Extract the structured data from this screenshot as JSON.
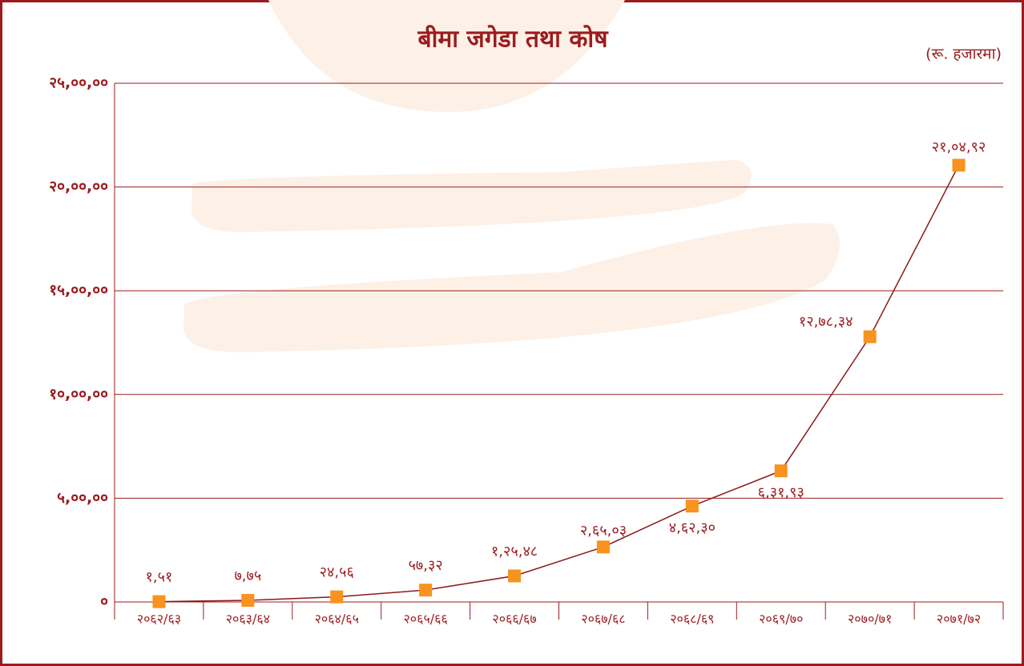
{
  "chart_data": {
    "type": "line",
    "title": "बीमा जगेडा तथा कोष",
    "subtitle": "(रू. हजारमा)",
    "categories": [
      "२०६२/६३",
      "२०६३/६४",
      "२०६४/६५",
      "२०६५/६६",
      "२०६६/६७",
      "२०६७/६८",
      "२०६८/६९",
      "२०६९/७०",
      "२०७०/७१",
      "२०७१/७२"
    ],
    "series": [
      {
        "name": "बीमा जगेडा तथा कोष",
        "color": "#f7931e",
        "line_color": "#8b1a1a",
        "values": [
          151,
          775,
          2456,
          5732,
          12548,
          26503,
          46230,
          63193,
          127834,
          210492
        ],
        "value_labels": [
          "१,५१",
          "७,७५",
          "२४,५६",
          "५७,३२",
          "१,२५,४८",
          "२,६५,०३",
          "४,६२,३०",
          "६,३१,९३",
          "१२,७८,३४",
          "२१,०४,९२"
        ]
      }
    ],
    "ylim": [
      0,
      250000
    ],
    "yticks": [
      {
        "value": 0,
        "label": "०"
      },
      {
        "value": 50000,
        "label": "५,००,००"
      },
      {
        "value": 100000,
        "label": "१०,००,००"
      },
      {
        "value": 150000,
        "label": "१५,००,००"
      },
      {
        "value": 200000,
        "label": "२०,००,००"
      },
      {
        "value": 250000,
        "label": "२५,००,००"
      }
    ],
    "grid": true
  }
}
